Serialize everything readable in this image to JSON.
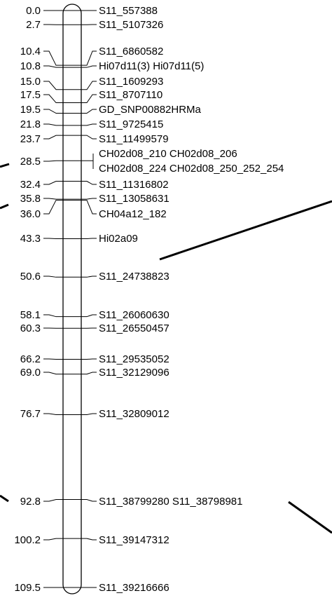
{
  "linkage_group": {
    "markers": [
      {
        "pos": 0.0,
        "pos_label": "0.0",
        "name": "S11_557388"
      },
      {
        "pos": 2.7,
        "pos_label": "2.7",
        "name": "S11_5107326"
      },
      {
        "pos": 10.4,
        "pos_label": "10.4",
        "name": "S11_6860582"
      },
      {
        "pos": 10.8,
        "pos_label": "10.8",
        "name": "Hi07d11(3) Hi07d11(5)"
      },
      {
        "pos": 15.0,
        "pos_label": "15.0",
        "name": "S11_1609293"
      },
      {
        "pos": 17.5,
        "pos_label": "17.5",
        "name": "S11_8707110"
      },
      {
        "pos": 19.5,
        "pos_label": "19.5",
        "name": "GD_SNP00882HRMa"
      },
      {
        "pos": 21.8,
        "pos_label": "21.8",
        "name": "S11_9725415"
      },
      {
        "pos": 23.7,
        "pos_label": "23.7",
        "name": "S11_11499579"
      },
      {
        "pos": 28.5,
        "pos_label": "28.5",
        "name": "CH02d08_210 CH02d08_206",
        "name2": "CH02d08_224 CH02d08_250_252_254"
      },
      {
        "pos": 32.4,
        "pos_label": "32.4",
        "name": "S11_11316802"
      },
      {
        "pos": 35.8,
        "pos_label": "35.8",
        "name": "S11_13058631"
      },
      {
        "pos": 36.0,
        "pos_label": "36.0",
        "name": "CH04a12_182"
      },
      {
        "pos": 43.3,
        "pos_label": "43.3",
        "name": "Hi02a09"
      },
      {
        "pos": 50.6,
        "pos_label": "50.6",
        "name": "S11_24738823"
      },
      {
        "pos": 58.1,
        "pos_label": "58.1",
        "name": "S11_26060630"
      },
      {
        "pos": 60.3,
        "pos_label": "60.3",
        "name": "S11_26550457"
      },
      {
        "pos": 66.2,
        "pos_label": "66.2",
        "name": "S11_29535052"
      },
      {
        "pos": 69.0,
        "pos_label": "69.0",
        "name": "S11_32129096"
      },
      {
        "pos": 76.7,
        "pos_label": "76.7",
        "name": "S11_32809012"
      },
      {
        "pos": 92.8,
        "pos_label": "92.8",
        "name": "S11_38799280 S11_38798981"
      },
      {
        "pos": 100.2,
        "pos_label": "100.2",
        "name": "S11_39147312"
      },
      {
        "pos": 109.5,
        "pos_label": "109.5",
        "name": "S11_39216666"
      }
    ]
  }
}
